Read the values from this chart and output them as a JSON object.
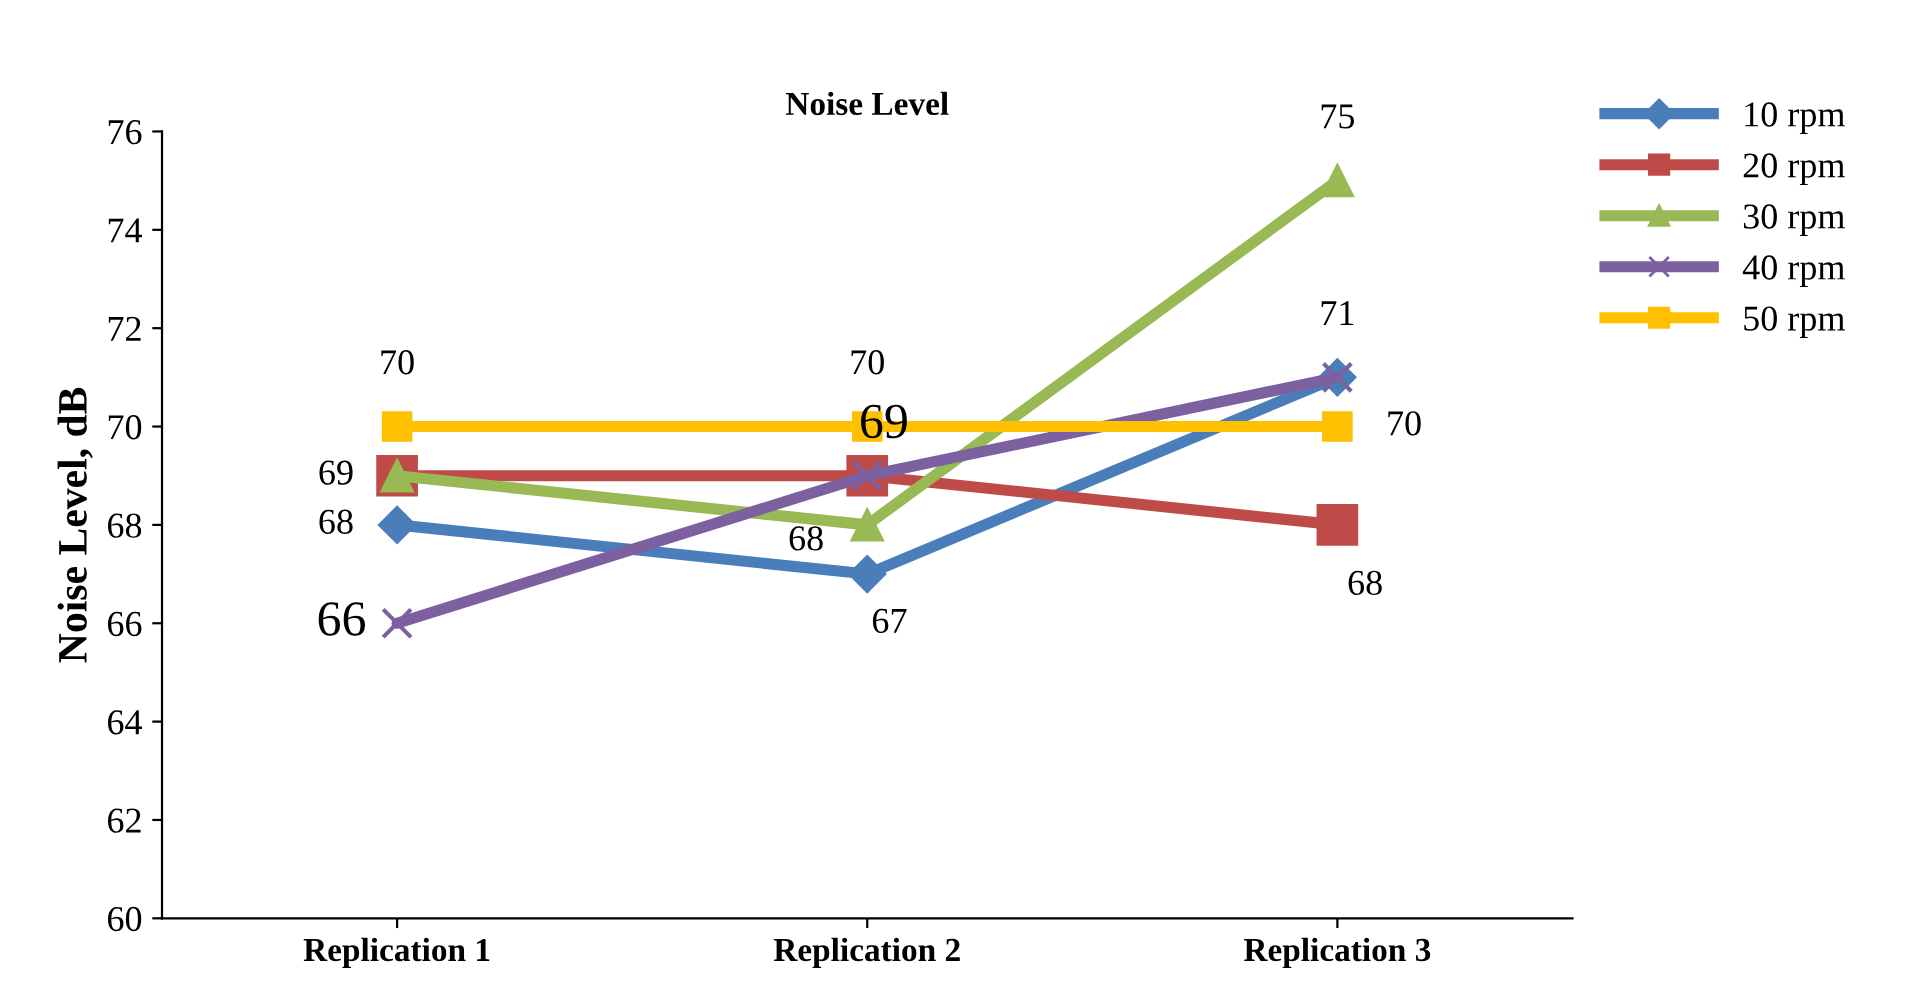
{
  "chart_data": {
    "type": "line",
    "title": "Noise Level",
    "ylabel": "Noise Level, dB",
    "categories": [
      "Replication 1",
      "Replication 2",
      "Replication 3"
    ],
    "ylim": [
      60,
      76
    ],
    "yticks": [
      60,
      62,
      64,
      66,
      68,
      70,
      72,
      74,
      76
    ],
    "grid": false,
    "legend": "top right",
    "line_style": "solid",
    "series": [
      {
        "name": "10 rpm",
        "color": "#4a7ebb",
        "marker": "diamond",
        "values": [
          68,
          67,
          71
        ],
        "value_labels": [
          "68",
          "67",
          null
        ]
      },
      {
        "name": "20 rpm",
        "color": "#be4b48",
        "marker": "square",
        "values": [
          69,
          69,
          68
        ],
        "value_labels": [
          null,
          null,
          "68"
        ]
      },
      {
        "name": "30 rpm",
        "color": "#98b954",
        "marker": "triangle",
        "values": [
          69,
          68,
          75
        ],
        "value_labels": [
          "69",
          "68",
          "75"
        ]
      },
      {
        "name": "40 rpm",
        "color": "#7d60a0",
        "marker": "cross",
        "values": [
          66,
          69,
          71
        ],
        "value_labels": [
          "66",
          "69",
          "71"
        ]
      },
      {
        "name": "50 rpm",
        "color": "#ffc000",
        "marker": "square",
        "values": [
          70,
          70,
          70
        ],
        "value_labels": [
          "70",
          "70",
          "70"
        ]
      }
    ]
  }
}
